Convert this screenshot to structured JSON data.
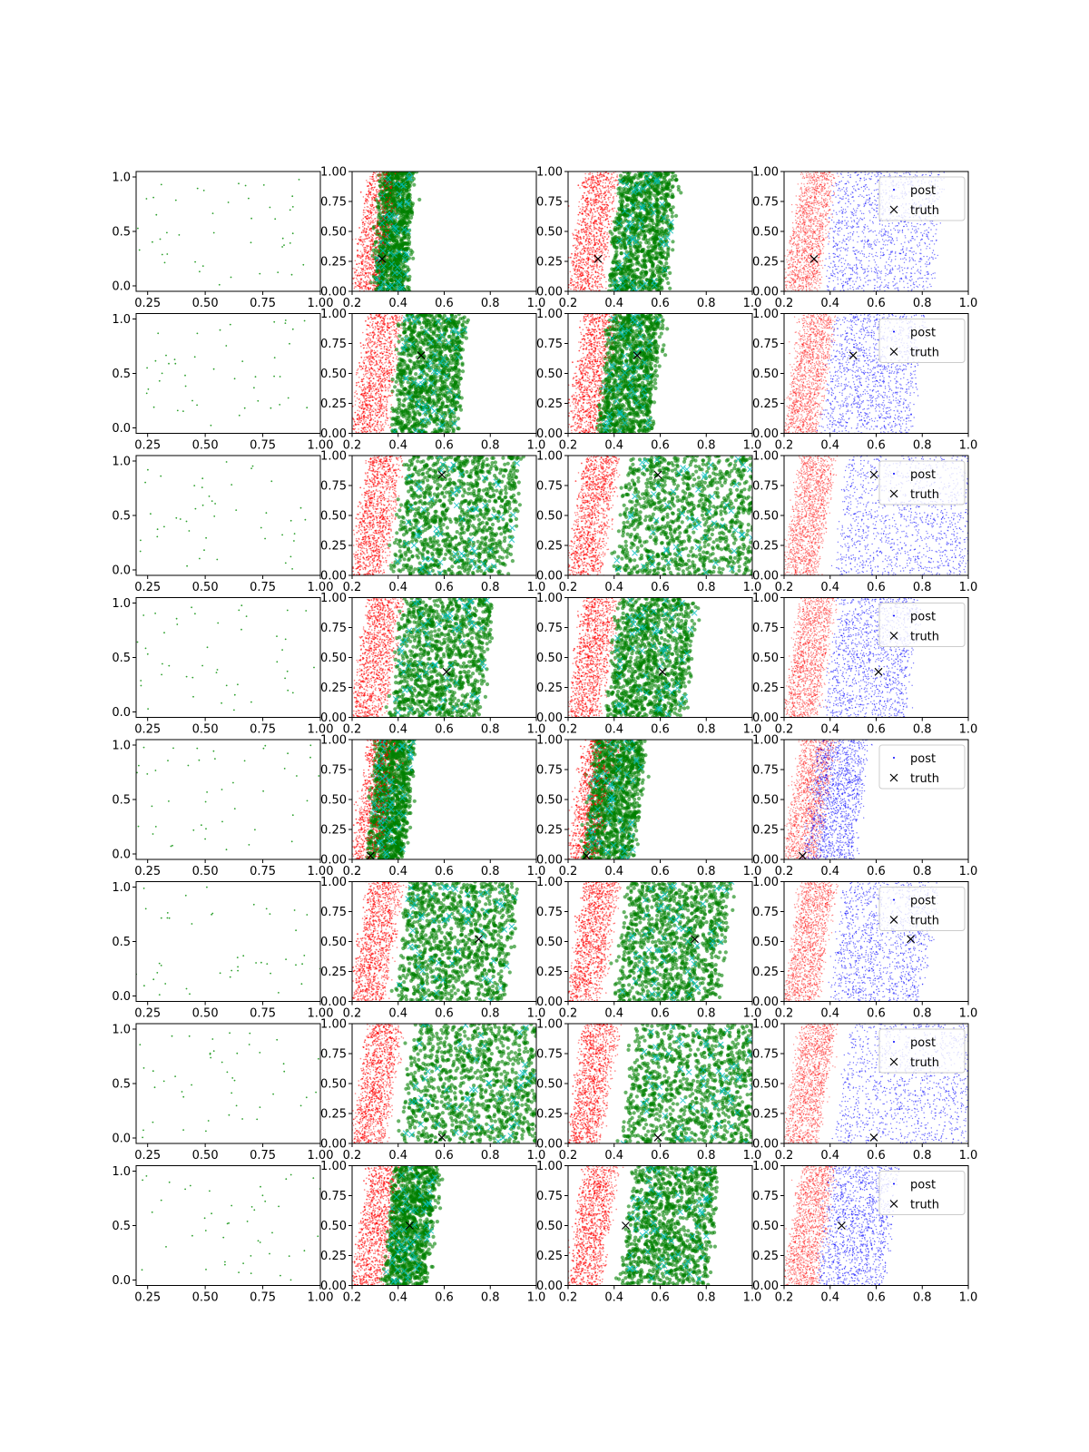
{
  "figure": {
    "panel_types": [
      "prior",
      "sample",
      "sample",
      "posterior"
    ],
    "legend": {
      "post_label": "post",
      "truth_label": "truth",
      "placement": "upper right"
    },
    "colors": {
      "prior": "#2ca02c",
      "red": "#ff0000",
      "green": "#008000",
      "cyan": "#00bfbf",
      "blue": "#0000ff",
      "truth": "#000000"
    }
  },
  "chart_data": [
    {
      "type": "scatter",
      "axes": {
        "prior": {
          "xlim": [
            0.2,
            1.0
          ],
          "ylim": [
            -0.05,
            1.05
          ],
          "xticks": [
            0.25,
            0.5,
            0.75,
            1.0
          ],
          "xtick_labels": [
            "0.25",
            "0.50",
            "0.75",
            "1.00"
          ],
          "yticks": [
            0.0,
            0.5,
            1.0
          ],
          "ytick_labels": [
            "0.0",
            "0.5",
            "1.0"
          ]
        },
        "sample": {
          "xlim": [
            0.2,
            1.0
          ],
          "ylim": [
            0.0,
            1.0
          ],
          "xticks": [
            0.2,
            0.4,
            0.6,
            0.8,
            1.0
          ],
          "xtick_labels": [
            "0.2",
            "0.4",
            "0.6",
            "0.8",
            "1.0"
          ],
          "yticks": [
            0.0,
            0.25,
            0.5,
            0.75,
            1.0
          ],
          "ytick_labels": [
            "0.00",
            "0.25",
            "0.50",
            "0.75",
            "1.00"
          ]
        }
      },
      "rows": [
        {
          "truth": [
            0.33,
            0.27
          ],
          "g1": [
            0.3,
            0.43,
            0.03
          ],
          "g2": [
            0.38,
            0.62,
            0.05
          ],
          "g3": [
            0.38,
            0.84,
            0.05
          ],
          "prior_seed": 11
        },
        {
          "truth": [
            0.5,
            0.65
          ],
          "g1": [
            0.37,
            0.65,
            0.05
          ],
          "g2": [
            0.33,
            0.55,
            0.06
          ],
          "g3": [
            0.36,
            0.74,
            0.07
          ],
          "prior_seed": 23
        },
        {
          "truth": [
            0.59,
            0.84
          ],
          "g1": [
            0.38,
            0.88,
            0.06
          ],
          "g2": [
            0.4,
            1.0,
            0.07
          ],
          "g3": [
            0.42,
            0.99,
            0.06
          ],
          "prior_seed": 37
        },
        {
          "truth": [
            0.61,
            0.38
          ],
          "g1": [
            0.37,
            0.75,
            0.06
          ],
          "g2": [
            0.37,
            0.7,
            0.06
          ],
          "g3": [
            0.37,
            0.72,
            0.07
          ],
          "prior_seed": 41
        },
        {
          "truth": [
            0.28,
            0.03
          ],
          "g1": [
            0.27,
            0.42,
            0.05
          ],
          "g2": [
            0.27,
            0.48,
            0.05
          ],
          "g3": [
            0.29,
            0.5,
            0.06
          ],
          "prior_seed": 53
        },
        {
          "truth": [
            0.75,
            0.52
          ],
          "g1": [
            0.39,
            0.86,
            0.06
          ],
          "g2": [
            0.4,
            0.84,
            0.07
          ],
          "g3": [
            0.4,
            0.8,
            0.07
          ],
          "prior_seed": 67
        },
        {
          "truth": [
            0.59,
            0.05
          ],
          "g1": [
            0.4,
            1.0,
            0.07
          ],
          "g2": [
            0.43,
            1.0,
            0.07
          ],
          "g3": [
            0.42,
            1.0,
            0.07
          ],
          "prior_seed": 79
        },
        {
          "truth": [
            0.45,
            0.5
          ],
          "g1": [
            0.34,
            0.52,
            0.05
          ],
          "g2": [
            0.43,
            0.8,
            0.06
          ],
          "g3": [
            0.35,
            0.63,
            0.06
          ],
          "prior_seed": 97
        }
      ],
      "band_note": "g1/g2/g3 are [left bound at y=0, right bound at y=0, slope] of the x-range of the green (col 2), green (col 3) and blue (col 4) point clouds in data units"
    }
  ]
}
